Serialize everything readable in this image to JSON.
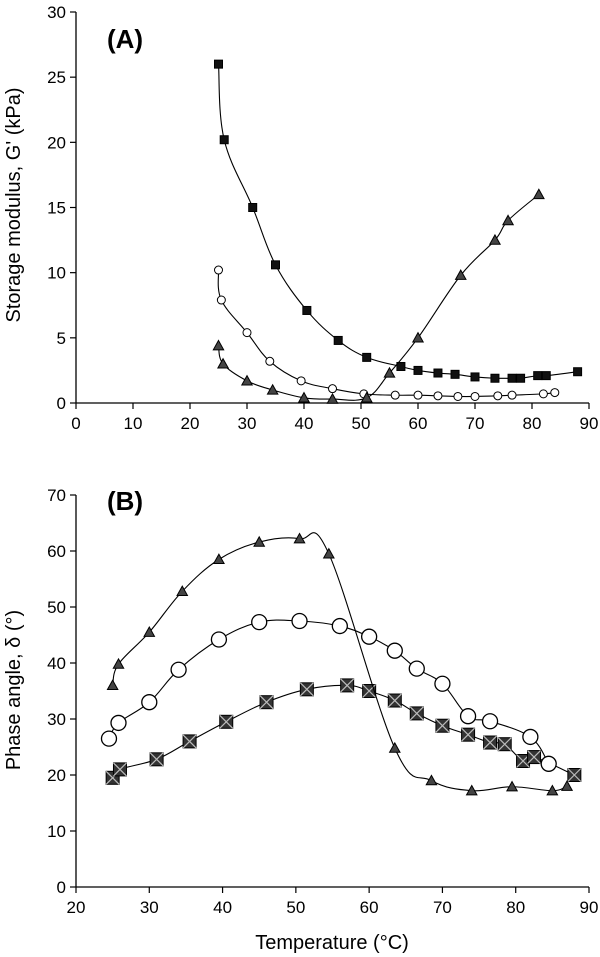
{
  "chart_data": [
    {
      "panel_label": "(A)",
      "type": "line",
      "ylabel": "Storage modulus, G' (kPa)",
      "xlabel": "",
      "xlim": [
        0,
        90
      ],
      "ylim": [
        0,
        30
      ],
      "xticks": [
        0,
        10,
        20,
        30,
        40,
        50,
        60,
        70,
        80,
        90
      ],
      "yticks": [
        0,
        5,
        10,
        15,
        20,
        25,
        30
      ],
      "grid": false,
      "series": [
        {
          "marker": "square",
          "points": [
            [
              25,
              26
            ],
            [
              26,
              20.2
            ],
            [
              31,
              15
            ],
            [
              35,
              10.6
            ],
            [
              40.5,
              7.1
            ],
            [
              46,
              4.8
            ],
            [
              51,
              3.5
            ],
            [
              57,
              2.8
            ],
            [
              60,
              2.5
            ],
            [
              63.5,
              2.3
            ],
            [
              66.5,
              2.2
            ],
            [
              70,
              2
            ],
            [
              73.5,
              1.9
            ],
            [
              76.5,
              1.9
            ],
            [
              78,
              1.9
            ],
            [
              81,
              2.1
            ],
            [
              82.5,
              2.1
            ],
            [
              88,
              2.4
            ]
          ]
        },
        {
          "marker": "circle",
          "points": [
            [
              25,
              10.2
            ],
            [
              25.5,
              7.9
            ],
            [
              30,
              5.4
            ],
            [
              34,
              3.2
            ],
            [
              39.5,
              1.7
            ],
            [
              45,
              1.1
            ],
            [
              50.5,
              0.7
            ],
            [
              56,
              0.6
            ],
            [
              60,
              0.6
            ],
            [
              63.5,
              0.55
            ],
            [
              67,
              0.5
            ],
            [
              70,
              0.5
            ],
            [
              74,
              0.55
            ],
            [
              76.5,
              0.6
            ],
            [
              82,
              0.7
            ],
            [
              84,
              0.8
            ]
          ]
        },
        {
          "marker": "triangle",
          "points": [
            [
              25,
              4.4
            ],
            [
              25.8,
              3
            ],
            [
              30,
              1.7
            ],
            [
              34.5,
              1
            ],
            [
              40,
              0.4
            ],
            [
              45,
              0.3
            ],
            [
              51,
              0.4
            ],
            [
              55,
              2.3
            ],
            [
              60,
              5
            ],
            [
              67.5,
              9.8
            ],
            [
              73.5,
              12.5
            ],
            [
              75.8,
              14
            ],
            [
              81.2,
              16
            ]
          ]
        }
      ]
    },
    {
      "panel_label": "(B)",
      "type": "line",
      "ylabel": "Phase angle, δ (°)",
      "xlabel": "Temperature (°C)",
      "xlim": [
        20,
        90
      ],
      "ylim": [
        0,
        70
      ],
      "xticks": [
        20,
        30,
        40,
        50,
        60,
        70,
        80,
        90
      ],
      "yticks": [
        0,
        10,
        20,
        30,
        40,
        50,
        60,
        70
      ],
      "grid": false,
      "series": [
        {
          "marker": "square-x",
          "points": [
            [
              25,
              19.5
            ],
            [
              26,
              21
            ],
            [
              31,
              22.8
            ],
            [
              35.5,
              26
            ],
            [
              40.5,
              29.5
            ],
            [
              46,
              33
            ],
            [
              51.5,
              35.3
            ],
            [
              57,
              36
            ],
            [
              60,
              35
            ],
            [
              63.5,
              33.3
            ],
            [
              66.5,
              31
            ],
            [
              70,
              28.8
            ],
            [
              73.5,
              27.2
            ],
            [
              76.5,
              25.8
            ],
            [
              78.5,
              25.5
            ],
            [
              81,
              22.5
            ],
            [
              82.5,
              23.2
            ],
            [
              88,
              20
            ]
          ]
        },
        {
          "marker": "circle",
          "points": [
            [
              24.5,
              26.5
            ],
            [
              25.8,
              29.3
            ],
            [
              30,
              33
            ],
            [
              34,
              38.8
            ],
            [
              39.5,
              44.2
            ],
            [
              45,
              47.3
            ],
            [
              50.5,
              47.5
            ],
            [
              56,
              46.6
            ],
            [
              60,
              44.7
            ],
            [
              63.5,
              42.2
            ],
            [
              66.5,
              39
            ],
            [
              70,
              36.3
            ],
            [
              73.5,
              30.5
            ],
            [
              76.5,
              29.6
            ],
            [
              82,
              26.8
            ],
            [
              84.5,
              22
            ]
          ]
        },
        {
          "marker": "triangle",
          "points": [
            [
              25,
              36
            ],
            [
              25.8,
              39.8
            ],
            [
              30,
              45.5
            ],
            [
              34.5,
              52.8
            ],
            [
              39.5,
              58.5
            ],
            [
              45,
              61.6
            ],
            [
              50.5,
              62.2
            ],
            [
              54.5,
              59.5
            ],
            [
              63.5,
              24.8
            ],
            [
              68.5,
              19
            ],
            [
              74,
              17.2
            ],
            [
              79.5,
              17.9
            ],
            [
              85,
              17.2
            ],
            [
              87,
              18
            ]
          ]
        }
      ]
    }
  ]
}
